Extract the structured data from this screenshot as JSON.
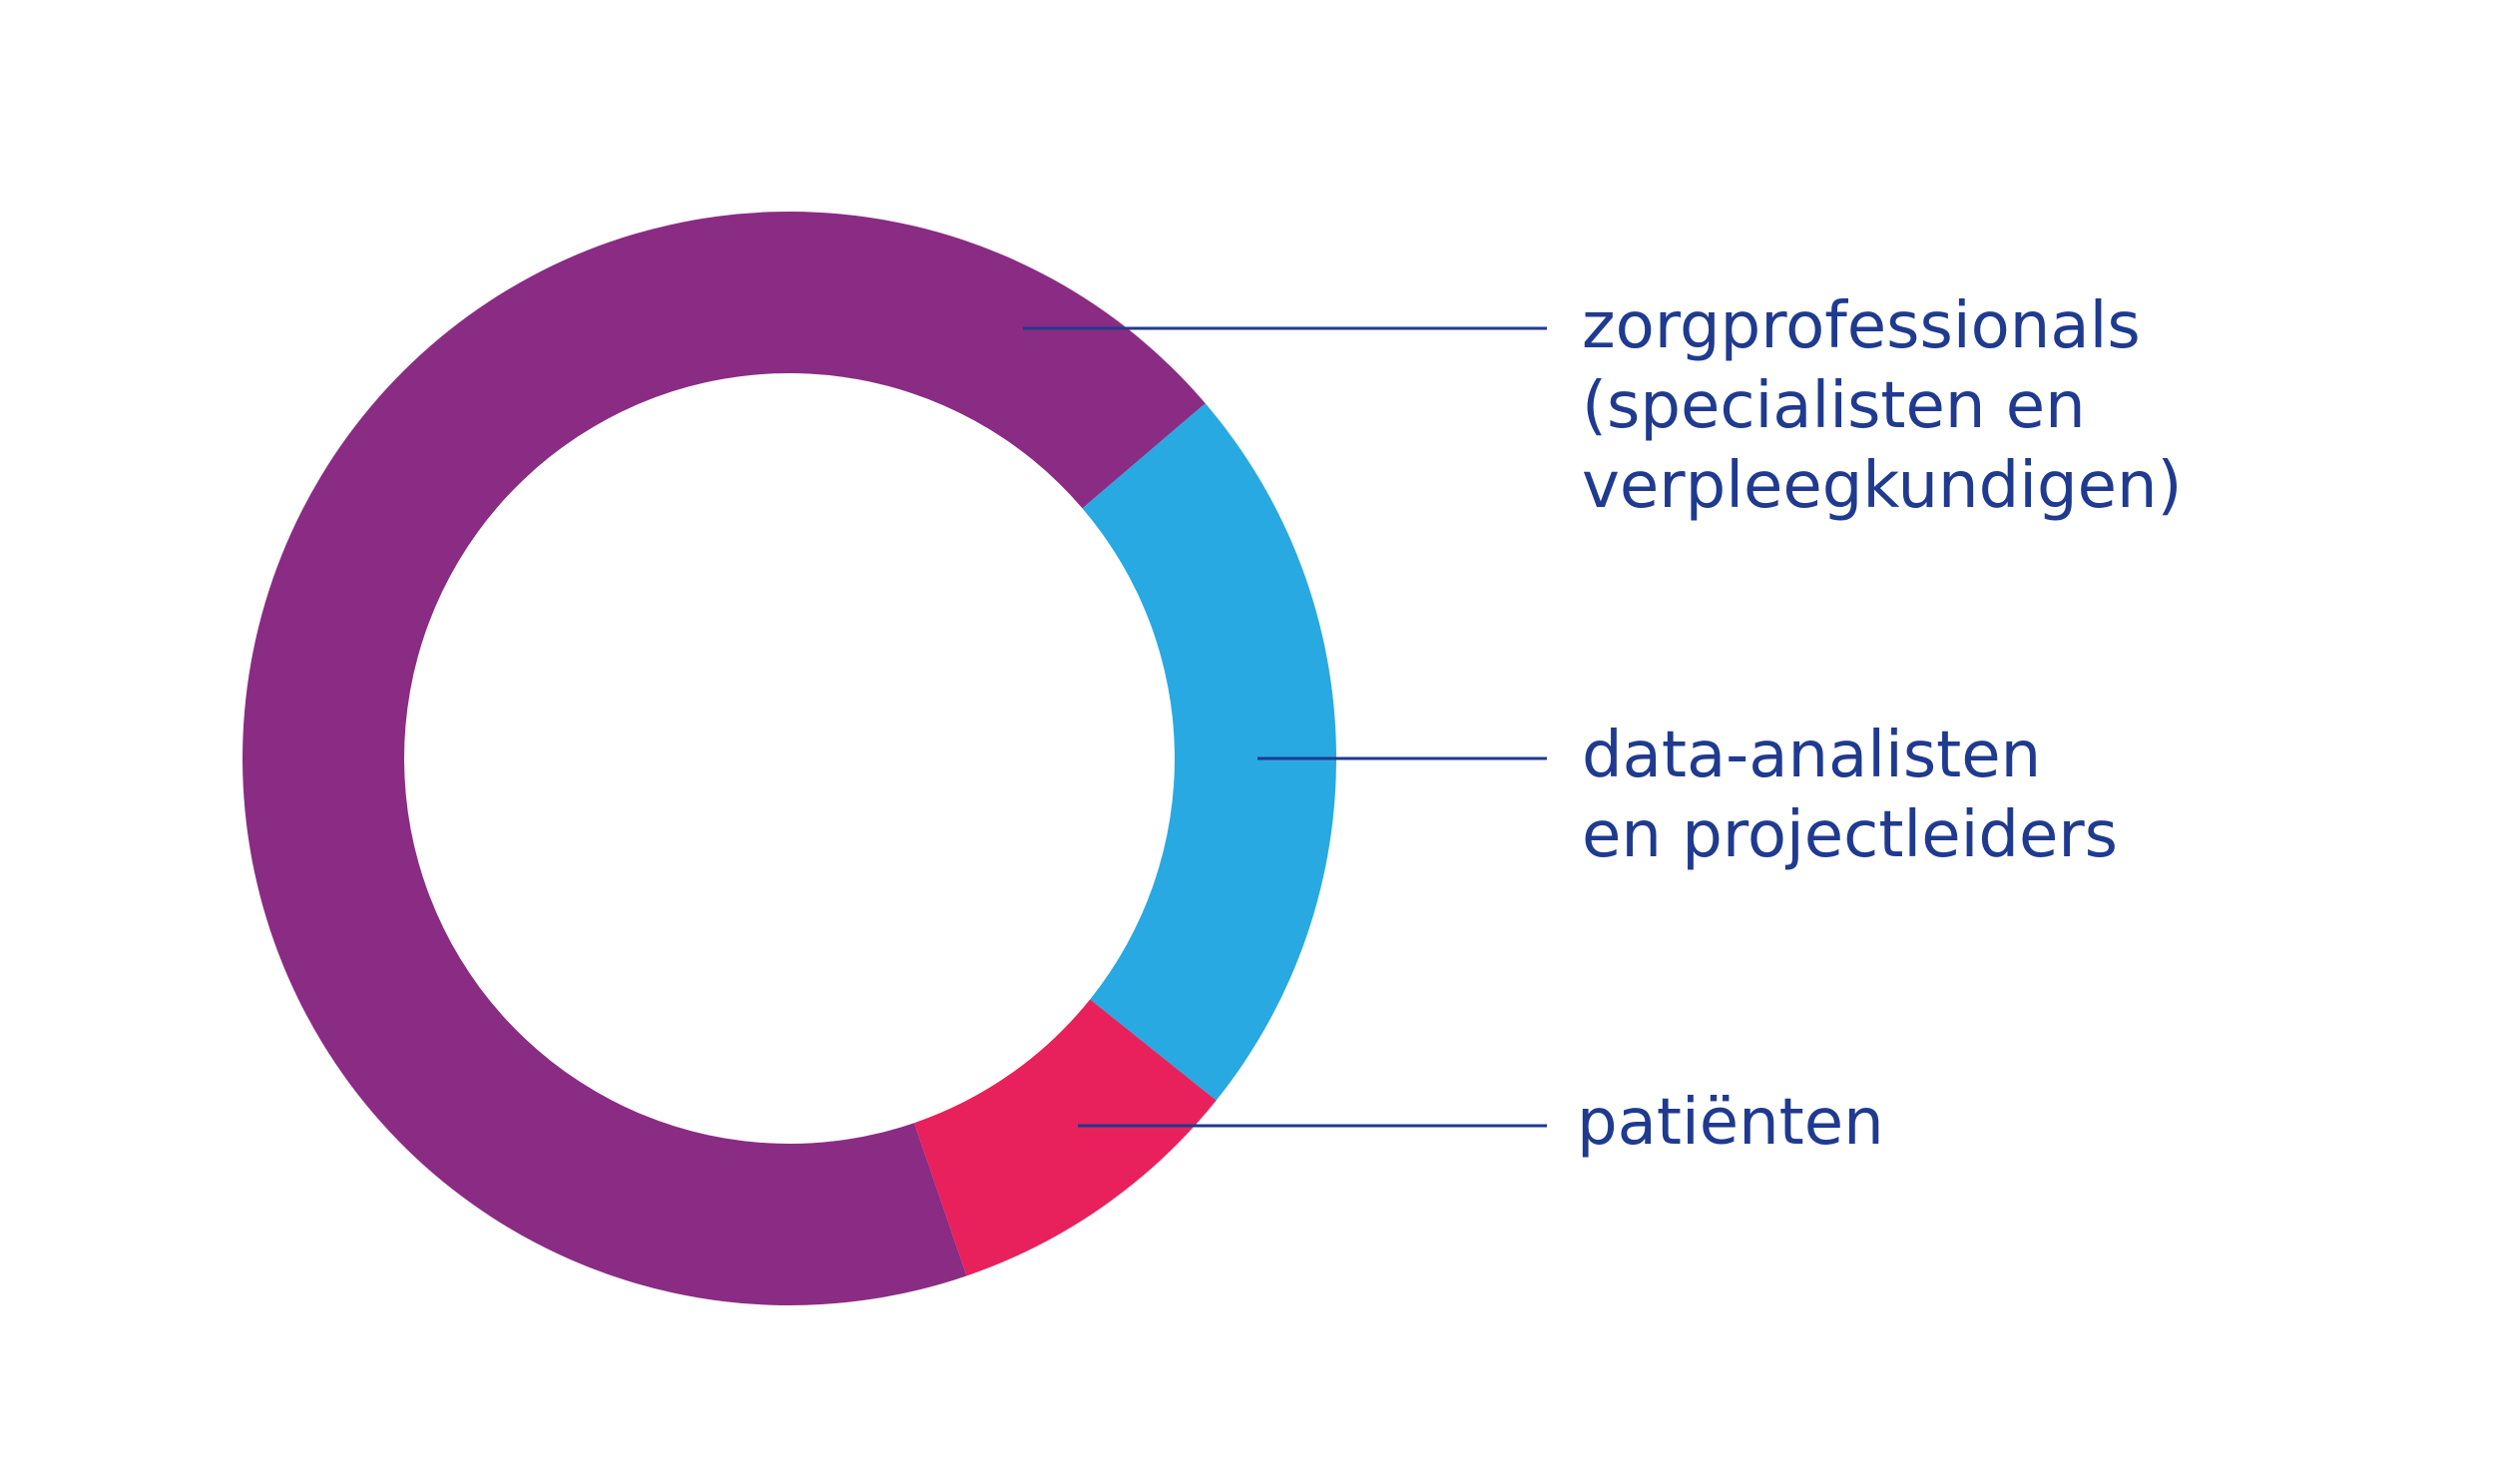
{
  "chart_data": {
    "type": "pie",
    "style": "donut",
    "title": "",
    "start": "upper-right, clockwise",
    "slices": [
      {
        "key": "data-analisten",
        "value": 22,
        "color": "#29a9e1",
        "label_lines": [
          "data-analisten",
          "en projectleiders"
        ]
      },
      {
        "key": "patienten",
        "value": 9,
        "color": "#e8215c",
        "label_lines": [
          "patiënten"
        ]
      },
      {
        "key": "zorgprofessionals",
        "value": 69,
        "color": "#8a2c83",
        "label_lines": [
          "zorgprofessionals",
          "(specialisten en",
          "verpleegkundigen)"
        ]
      }
    ],
    "label_color": "#1f3a8f",
    "legend": "right, with leader lines"
  }
}
